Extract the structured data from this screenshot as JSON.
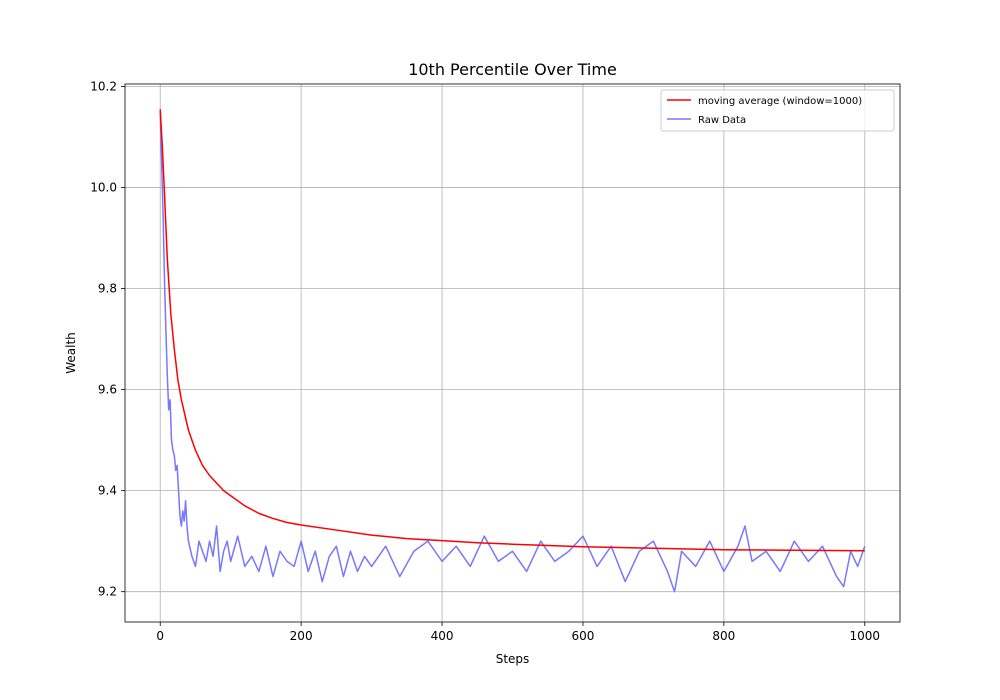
{
  "chart_data": {
    "type": "line",
    "title": "10th Percentile Over Time",
    "xlabel": "Steps",
    "ylabel": "Wealth",
    "xlim": [
      -50,
      1050
    ],
    "ylim": [
      9.14,
      10.205
    ],
    "x_ticks": [
      0,
      200,
      400,
      600,
      800,
      1000
    ],
    "y_ticks": [
      9.2,
      9.4,
      9.6,
      9.8,
      10.0,
      10.2
    ],
    "x_tick_labels": [
      "0",
      "200",
      "400",
      "600",
      "800",
      "1000"
    ],
    "y_tick_labels": [
      "9.2",
      "9.4",
      "9.6",
      "9.8",
      "10.0",
      "10.2"
    ],
    "grid": true,
    "legend_position": "top-right",
    "series": [
      {
        "name": "moving average (window=1000)",
        "color": "#ff0000",
        "x": [
          0,
          3,
          6,
          10,
          15,
          20,
          25,
          30,
          40,
          50,
          60,
          70,
          80,
          90,
          100,
          120,
          140,
          160,
          180,
          200,
          250,
          300,
          350,
          400,
          450,
          500,
          600,
          700,
          800,
          900,
          1000
        ],
        "y": [
          10.155,
          10.08,
          9.99,
          9.86,
          9.75,
          9.68,
          9.62,
          9.58,
          9.52,
          9.48,
          9.45,
          9.43,
          9.415,
          9.4,
          9.39,
          9.37,
          9.355,
          9.345,
          9.337,
          9.332,
          9.322,
          9.312,
          9.305,
          9.301,
          9.297,
          9.294,
          9.289,
          9.286,
          9.283,
          9.282,
          9.281
        ]
      },
      {
        "name": "Raw Data",
        "color": "#7777ff",
        "x": [
          0,
          2,
          4,
          6,
          8,
          10,
          12,
          14,
          16,
          18,
          20,
          22,
          24,
          26,
          28,
          30,
          32,
          34,
          36,
          38,
          40,
          45,
          50,
          55,
          60,
          65,
          70,
          75,
          80,
          85,
          90,
          95,
          100,
          110,
          120,
          130,
          140,
          150,
          160,
          170,
          180,
          190,
          200,
          210,
          220,
          230,
          240,
          250,
          260,
          270,
          280,
          290,
          300,
          320,
          340,
          360,
          380,
          400,
          420,
          440,
          460,
          480,
          500,
          520,
          540,
          560,
          580,
          600,
          620,
          640,
          660,
          680,
          700,
          720,
          730,
          740,
          760,
          780,
          800,
          820,
          830,
          840,
          860,
          880,
          900,
          920,
          940,
          960,
          970,
          980,
          990,
          1000
        ],
        "y": [
          10.15,
          10.05,
          9.95,
          9.82,
          9.72,
          9.63,
          9.56,
          9.58,
          9.5,
          9.48,
          9.47,
          9.44,
          9.45,
          9.4,
          9.35,
          9.33,
          9.36,
          9.34,
          9.38,
          9.33,
          9.3,
          9.27,
          9.25,
          9.3,
          9.28,
          9.26,
          9.3,
          9.27,
          9.33,
          9.24,
          9.28,
          9.3,
          9.26,
          9.31,
          9.25,
          9.27,
          9.24,
          9.29,
          9.23,
          9.28,
          9.26,
          9.25,
          9.3,
          9.24,
          9.28,
          9.22,
          9.27,
          9.29,
          9.23,
          9.28,
          9.24,
          9.27,
          9.25,
          9.29,
          9.23,
          9.28,
          9.3,
          9.26,
          9.29,
          9.25,
          9.31,
          9.26,
          9.28,
          9.24,
          9.3,
          9.26,
          9.28,
          9.31,
          9.25,
          9.29,
          9.22,
          9.28,
          9.3,
          9.24,
          9.2,
          9.28,
          9.25,
          9.3,
          9.24,
          9.29,
          9.33,
          9.26,
          9.28,
          9.24,
          9.3,
          9.26,
          9.29,
          9.23,
          9.21,
          9.28,
          9.25,
          9.29
        ]
      }
    ]
  }
}
